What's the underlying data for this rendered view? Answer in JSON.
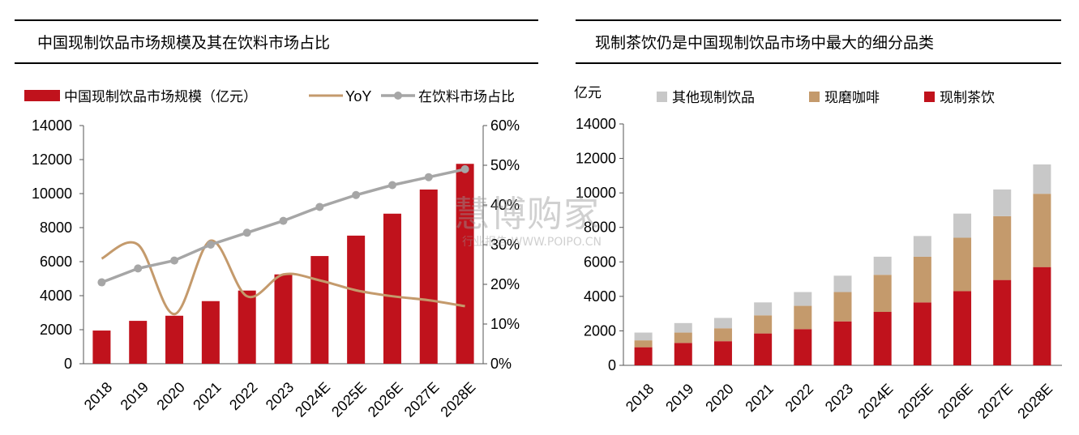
{
  "watermark": {
    "main": "慧博购家",
    "sub": "行业报告 WWW.POIPO.CN"
  },
  "colors": {
    "red": "#C0121C",
    "yoy": "#C49A6C",
    "share": "#A6A6A6",
    "coffee": "#C49A6C",
    "other": "#C8C8C8"
  },
  "chart_data": [
    {
      "type": "bar",
      "title": "中国现制饮品市场规模及其在饮料市场占比",
      "categories": [
        "2018",
        "2019",
        "2020",
        "2021",
        "2022",
        "2023",
        "2024E",
        "2025E",
        "2026E",
        "2027E",
        "2028E"
      ],
      "legend_position": "top",
      "ylim": [
        0,
        14000
      ],
      "yticks": [
        "0",
        "2000",
        "4000",
        "6000",
        "8000",
        "10000",
        "12000",
        "14000"
      ],
      "y2lim": [
        0,
        60
      ],
      "y2ticks": [
        "0%",
        "10%",
        "20%",
        "30%",
        "40%",
        "50%",
        "60%"
      ],
      "grid": false,
      "series": [
        {
          "name": "中国现制饮品市场规模（亿元）",
          "type": "bar",
          "axis": "left",
          "values": [
            1950,
            2520,
            2820,
            3680,
            4300,
            5250,
            6330,
            7530,
            8820,
            10240,
            11750
          ]
        },
        {
          "name": "YoY",
          "type": "line",
          "axis": "right",
          "smooth": true,
          "values": [
            26.5,
            30.0,
            12.5,
            31.0,
            17.0,
            22.5,
            21.0,
            18.5,
            17.0,
            16.0,
            14.5
          ]
        },
        {
          "name": "在饮料市场占比",
          "type": "line",
          "axis": "right",
          "marker": "circle",
          "values": [
            20.5,
            24.0,
            26.0,
            30.0,
            33.0,
            36.0,
            39.5,
            42.5,
            45.0,
            47.0,
            49.0
          ]
        }
      ]
    },
    {
      "type": "bar",
      "stacked": true,
      "title": "现制茶饮仍是中国现制饮品市场中最大的细分品类",
      "ylabel": "亿元",
      "categories": [
        "2018",
        "2019",
        "2020",
        "2021",
        "2022",
        "2023",
        "2024E",
        "2025E",
        "2026E",
        "2027E",
        "2028E"
      ],
      "legend_position": "top",
      "ylim": [
        0,
        14000
      ],
      "yticks": [
        "0",
        "2000",
        "4000",
        "6000",
        "8000",
        "10000",
        "12000",
        "14000"
      ],
      "grid": false,
      "series": [
        {
          "name": "现制茶饮",
          "values": [
            1050,
            1300,
            1400,
            1850,
            2100,
            2550,
            3100,
            3650,
            4300,
            4950,
            5700
          ]
        },
        {
          "name": "现磨咖啡",
          "values": [
            400,
            600,
            750,
            1050,
            1350,
            1700,
            2150,
            2650,
            3100,
            3700,
            4250
          ]
        },
        {
          "name": "其他现制饮品",
          "values": [
            450,
            550,
            600,
            750,
            800,
            950,
            1050,
            1200,
            1400,
            1550,
            1700
          ]
        }
      ]
    }
  ]
}
